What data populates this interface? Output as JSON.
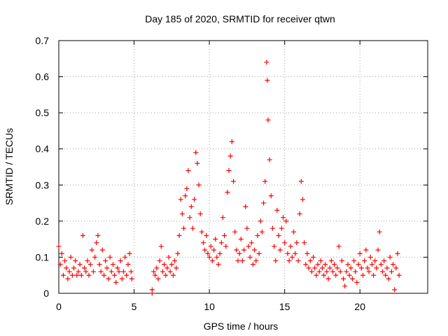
{
  "chart_data": {
    "type": "scatter",
    "title": "Day 185 of 2020, SRMTID for receiver qtwn",
    "xlabel": "GPS time / hours",
    "ylabel": "SRMTID / TECUs",
    "xlim": [
      0,
      24.5
    ],
    "ylim": [
      0,
      0.7
    ],
    "grid": true,
    "marker": "plus",
    "marker_color": "#ff0000",
    "xticks": [
      0,
      5,
      10,
      15,
      20
    ],
    "xtick_labels": [
      "0",
      "5",
      "10",
      "15",
      "20"
    ],
    "yticks": [
      0,
      0.1,
      0.2,
      0.3,
      0.4,
      0.5,
      0.6,
      0.7
    ],
    "ytick_labels": [
      "0",
      "0.1",
      "0.2",
      "0.3",
      "0.4",
      "0.5",
      "0.6",
      "0.7"
    ],
    "series": [
      {
        "name": "SRMTID",
        "points": [
          [
            0.0,
            0.13
          ],
          [
            0.1,
            0.08
          ],
          [
            0.2,
            0.11
          ],
          [
            0.3,
            0.05
          ],
          [
            0.4,
            0.09
          ],
          [
            0.5,
            0.07
          ],
          [
            0.6,
            0.04
          ],
          [
            0.7,
            0.06
          ],
          [
            0.8,
            0.1
          ],
          [
            0.9,
            0.05
          ],
          [
            1.0,
            0.07
          ],
          [
            1.1,
            0.09
          ],
          [
            1.2,
            0.05
          ],
          [
            1.3,
            0.06
          ],
          [
            1.4,
            0.08
          ],
          [
            1.5,
            0.05
          ],
          [
            1.6,
            0.16
          ],
          [
            1.7,
            0.07
          ],
          [
            1.8,
            0.06
          ],
          [
            1.9,
            0.09
          ],
          [
            2.0,
            0.05
          ],
          [
            2.1,
            0.08
          ],
          [
            2.2,
            0.12
          ],
          [
            2.3,
            0.06
          ],
          [
            2.4,
            0.1
          ],
          [
            2.5,
            0.14
          ],
          [
            2.6,
            0.16
          ],
          [
            2.7,
            0.08
          ],
          [
            2.8,
            0.06
          ],
          [
            2.9,
            0.12
          ],
          [
            3.0,
            0.05
          ],
          [
            3.1,
            0.09
          ],
          [
            3.2,
            0.07
          ],
          [
            3.3,
            0.04
          ],
          [
            3.4,
            0.1
          ],
          [
            3.5,
            0.06
          ],
          [
            3.6,
            0.08
          ],
          [
            3.7,
            0.05
          ],
          [
            3.8,
            0.03
          ],
          [
            3.9,
            0.07
          ],
          [
            4.0,
            0.06
          ],
          [
            4.1,
            0.09
          ],
          [
            4.2,
            0.04
          ],
          [
            4.3,
            0.06
          ],
          [
            4.4,
            0.1
          ],
          [
            4.5,
            0.05
          ],
          [
            4.6,
            0.08
          ],
          [
            4.7,
            0.11
          ],
          [
            4.8,
            0.06
          ],
          [
            4.85,
            0.04
          ],
          [
            6.2,
            0.0
          ],
          [
            6.2,
            0.01
          ],
          [
            6.3,
            0.06
          ],
          [
            6.4,
            0.05
          ],
          [
            6.5,
            0.07
          ],
          [
            6.6,
            0.04
          ],
          [
            6.7,
            0.09
          ],
          [
            6.8,
            0.13
          ],
          [
            6.9,
            0.06
          ],
          [
            7.0,
            0.08
          ],
          [
            7.1,
            0.05
          ],
          [
            7.2,
            0.07
          ],
          [
            7.3,
            0.1
          ],
          [
            7.4,
            0.06
          ],
          [
            7.5,
            0.08
          ],
          [
            7.6,
            0.05
          ],
          [
            7.7,
            0.09
          ],
          [
            7.8,
            0.07
          ],
          [
            7.9,
            0.11
          ],
          [
            8.0,
            0.16
          ],
          [
            8.1,
            0.26
          ],
          [
            8.2,
            0.22
          ],
          [
            8.3,
            0.18
          ],
          [
            8.4,
            0.27
          ],
          [
            8.5,
            0.29
          ],
          [
            8.6,
            0.34
          ],
          [
            8.7,
            0.21
          ],
          [
            8.8,
            0.24
          ],
          [
            8.9,
            0.18
          ],
          [
            9.0,
            0.26
          ],
          [
            9.1,
            0.39
          ],
          [
            9.2,
            0.36
          ],
          [
            9.3,
            0.3
          ],
          [
            9.4,
            0.22
          ],
          [
            9.5,
            0.17
          ],
          [
            9.6,
            0.14
          ],
          [
            9.7,
            0.12
          ],
          [
            9.8,
            0.16
          ],
          [
            9.9,
            0.11
          ],
          [
            10.0,
            0.1
          ],
          [
            10.1,
            0.13
          ],
          [
            10.2,
            0.09
          ],
          [
            10.3,
            0.12
          ],
          [
            10.4,
            0.15
          ],
          [
            10.5,
            0.1
          ],
          [
            10.6,
            0.08
          ],
          [
            10.7,
            0.11
          ],
          [
            10.8,
            0.14
          ],
          [
            10.9,
            0.21
          ],
          [
            11.0,
            0.16
          ],
          [
            11.1,
            0.13
          ],
          [
            11.2,
            0.28
          ],
          [
            11.3,
            0.34
          ],
          [
            11.4,
            0.38
          ],
          [
            11.5,
            0.42
          ],
          [
            11.6,
            0.31
          ],
          [
            11.7,
            0.17
          ],
          [
            11.8,
            0.12
          ],
          [
            11.9,
            0.09
          ],
          [
            12.0,
            0.11
          ],
          [
            12.1,
            0.15
          ],
          [
            12.2,
            0.09
          ],
          [
            12.3,
            0.12
          ],
          [
            12.4,
            0.24
          ],
          [
            12.5,
            0.18
          ],
          [
            12.6,
            0.13
          ],
          [
            12.7,
            0.1
          ],
          [
            12.8,
            0.14
          ],
          [
            12.9,
            0.08
          ],
          [
            13.0,
            0.12
          ],
          [
            13.1,
            0.09
          ],
          [
            13.2,
            0.16
          ],
          [
            13.3,
            0.11
          ],
          [
            13.4,
            0.2
          ],
          [
            13.5,
            0.17
          ],
          [
            13.6,
            0.25
          ],
          [
            13.7,
            0.31
          ],
          [
            13.8,
            0.64
          ],
          [
            13.85,
            0.59
          ],
          [
            13.9,
            0.48
          ],
          [
            14.0,
            0.37
          ],
          [
            14.1,
            0.27
          ],
          [
            14.2,
            0.18
          ],
          [
            14.3,
            0.13
          ],
          [
            14.4,
            0.09
          ],
          [
            14.5,
            0.23
          ],
          [
            14.6,
            0.16
          ],
          [
            14.7,
            0.12
          ],
          [
            14.8,
            0.18
          ],
          [
            14.9,
            0.21
          ],
          [
            15.0,
            0.14
          ],
          [
            15.1,
            0.2
          ],
          [
            15.2,
            0.11
          ],
          [
            15.3,
            0.09
          ],
          [
            15.4,
            0.13
          ],
          [
            15.5,
            0.1
          ],
          [
            15.6,
            0.17
          ],
          [
            15.7,
            0.11
          ],
          [
            15.8,
            0.14
          ],
          [
            15.9,
            0.09
          ],
          [
            16.0,
            0.22
          ],
          [
            16.1,
            0.31
          ],
          [
            16.2,
            0.26
          ],
          [
            16.3,
            0.14
          ],
          [
            16.4,
            0.08
          ],
          [
            16.5,
            0.11
          ],
          [
            16.6,
            0.07
          ],
          [
            16.7,
            0.09
          ],
          [
            16.8,
            0.06
          ],
          [
            16.9,
            0.1
          ],
          [
            17.0,
            0.07
          ],
          [
            17.1,
            0.05
          ],
          [
            17.2,
            0.08
          ],
          [
            17.3,
            0.06
          ],
          [
            17.4,
            0.09
          ],
          [
            17.5,
            0.07
          ],
          [
            17.6,
            0.05
          ],
          [
            17.7,
            0.08
          ],
          [
            17.8,
            0.06
          ],
          [
            17.9,
            0.04
          ],
          [
            18.0,
            0.07
          ],
          [
            18.1,
            0.09
          ],
          [
            18.2,
            0.06
          ],
          [
            18.3,
            0.08
          ],
          [
            18.4,
            0.05
          ],
          [
            18.5,
            0.07
          ],
          [
            18.6,
            0.13
          ],
          [
            18.7,
            0.06
          ],
          [
            18.8,
            0.09
          ],
          [
            18.9,
            0.04
          ],
          [
            19.0,
            0.02
          ],
          [
            19.1,
            0.06
          ],
          [
            19.2,
            0.08
          ],
          [
            19.3,
            0.05
          ],
          [
            19.4,
            0.07
          ],
          [
            19.5,
            0.04
          ],
          [
            19.6,
            0.09
          ],
          [
            19.7,
            0.06
          ],
          [
            19.8,
            0.03
          ],
          [
            19.9,
            0.08
          ],
          [
            20.0,
            0.11
          ],
          [
            20.1,
            0.07
          ],
          [
            20.2,
            0.05
          ],
          [
            20.3,
            0.09
          ],
          [
            20.4,
            0.12
          ],
          [
            20.5,
            0.07
          ],
          [
            20.6,
            0.06
          ],
          [
            20.7,
            0.1
          ],
          [
            20.8,
            0.08
          ],
          [
            20.9,
            0.05
          ],
          [
            21.0,
            0.09
          ],
          [
            21.1,
            0.07
          ],
          [
            21.2,
            0.12
          ],
          [
            21.3,
            0.17
          ],
          [
            21.4,
            0.08
          ],
          [
            21.5,
            0.06
          ],
          [
            21.6,
            0.09
          ],
          [
            21.7,
            0.05
          ],
          [
            21.8,
            0.07
          ],
          [
            21.9,
            0.04
          ],
          [
            22.0,
            0.1
          ],
          [
            22.1,
            0.06
          ],
          [
            22.2,
            0.08
          ],
          [
            22.3,
            0.01
          ],
          [
            22.4,
            0.07
          ],
          [
            22.5,
            0.11
          ],
          [
            22.6,
            0.05
          ]
        ]
      }
    ]
  }
}
